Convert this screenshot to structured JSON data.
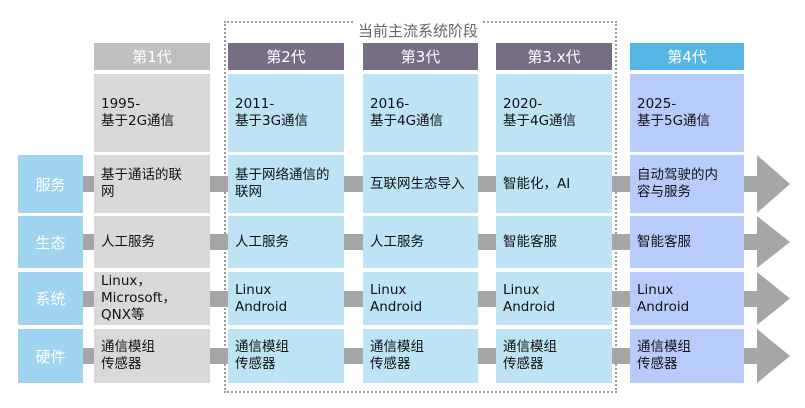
{
  "stage_title": "当前主流系统阶段",
  "colors": {
    "gen1_header": "#bfbfbf",
    "gen1_cell": "#d9d9d9",
    "current_header": "#776e86",
    "current_cell": "#bde3f5",
    "gen4_header": "#55b5e3",
    "gen4_cell": "#b8ccfc",
    "row_label": "#9fd3ef",
    "connector": "#a6a6a6"
  },
  "row_labels": [
    "服务",
    "生态",
    "系统",
    "硬件"
  ],
  "generations": [
    {
      "header": "第1代",
      "period": "1995-\n基于2G通信",
      "cells": [
        "基于通话的联\n网",
        "人工服务",
        "Linux，\nMicrosoft，\nQNX等",
        "通信模组\n传感器"
      ],
      "style": "gen1"
    },
    {
      "header": "第2代",
      "period": "2011-\n基于3G通信",
      "cells": [
        "基于网络通信的\n联网",
        "人工服务",
        "Linux\nAndroid",
        "通信模组\n传感器"
      ],
      "style": "current"
    },
    {
      "header": "第3代",
      "period": "2016-\n基于4G通信",
      "cells": [
        "互联网生态导入",
        "人工服务",
        "Linux\nAndroid",
        "通信模组\n传感器"
      ],
      "style": "current"
    },
    {
      "header": "第3.x代",
      "period": "2020-\n基于4G通信",
      "cells": [
        "智能化，AI",
        "智能客服",
        "Linux\nAndroid",
        "通信模组\n传感器"
      ],
      "style": "current"
    },
    {
      "header": "第4代",
      "period": "2025-\n基于5G通信",
      "cells": [
        "自动驾驶的内\n容与服务",
        "智能客服",
        "Linux\nAndroid",
        "通信模组\n传感器"
      ],
      "style": "gen4"
    }
  ]
}
